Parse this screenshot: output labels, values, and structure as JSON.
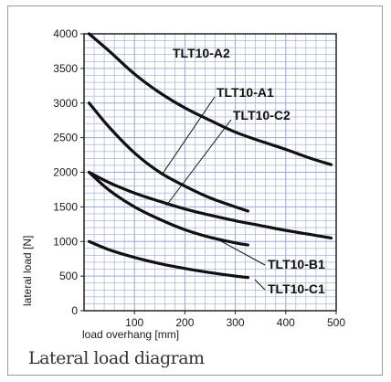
{
  "caption": "Lateral load diagram",
  "chart_data": {
    "type": "line",
    "xlabel": "load overhang [mm]",
    "ylabel": "lateral load [N]",
    "xlim": [
      0,
      500
    ],
    "ylim": [
      0,
      4000
    ],
    "x_ticks": [
      100,
      200,
      300,
      400,
      500
    ],
    "y_ticks": [
      0,
      500,
      1000,
      1500,
      2000,
      2500,
      3000,
      3500,
      4000
    ],
    "grid": true,
    "line_color": "#111111",
    "grid_color": "#9aa8d8",
    "series": [
      {
        "name": "TLT10-A2",
        "x": [
          10,
          50,
          100,
          150,
          200,
          250,
          300,
          350,
          400,
          450,
          490
        ],
        "y": [
          4000,
          3750,
          3420,
          3150,
          2930,
          2750,
          2580,
          2450,
          2330,
          2200,
          2110
        ]
      },
      {
        "name": "TLT10-A1",
        "x": [
          10,
          50,
          100,
          150,
          200,
          250,
          300,
          325
        ],
        "y": [
          3000,
          2650,
          2280,
          2000,
          1800,
          1630,
          1500,
          1440
        ]
      },
      {
        "name": "TLT10-C2",
        "x": [
          10,
          50,
          100,
          150,
          200,
          250,
          300,
          350,
          400,
          450,
          490
        ],
        "y": [
          2000,
          1850,
          1700,
          1580,
          1470,
          1380,
          1300,
          1230,
          1160,
          1100,
          1050
        ]
      },
      {
        "name": "TLT10-B1",
        "x": [
          10,
          50,
          100,
          150,
          200,
          250,
          300,
          325
        ],
        "y": [
          2000,
          1740,
          1500,
          1320,
          1170,
          1060,
          980,
          950
        ]
      },
      {
        "name": "TLT10-C1",
        "x": [
          10,
          50,
          100,
          150,
          200,
          250,
          300,
          325
        ],
        "y": [
          1000,
          880,
          770,
          680,
          610,
          550,
          500,
          480
        ]
      }
    ]
  }
}
